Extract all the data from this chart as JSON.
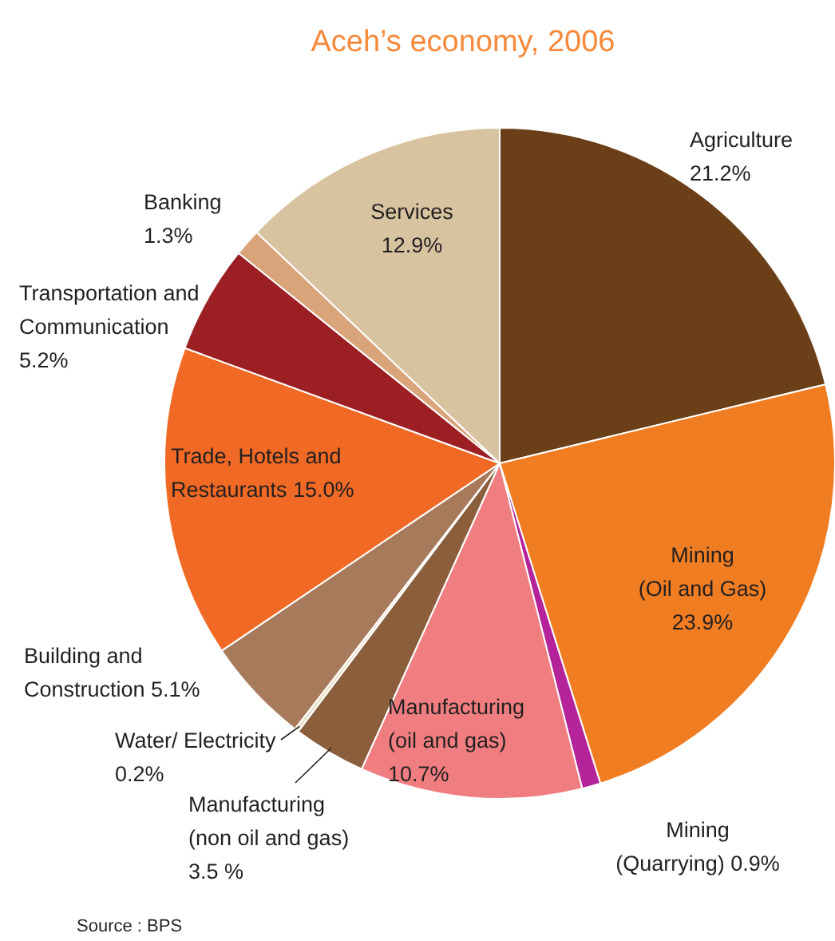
{
  "chart_data": {
    "type": "pie",
    "title": "Aceh’s economy, 2006",
    "categories": [
      "Agriculture",
      "Mining (Oil and Gas)",
      "Mining (Quarrying)",
      "Manufacturing (oil and gas)",
      "Manufacturing (non oil and gas)",
      "Water/ Electricity",
      "Building and Construction",
      "Trade, Hotels and Restaurants",
      "Transportation and Communication",
      "Banking",
      "Services"
    ],
    "values": [
      21.2,
      23.9,
      0.9,
      10.7,
      3.5,
      0.2,
      5.1,
      15.0,
      5.2,
      1.3,
      12.9
    ],
    "value_labels": [
      "21.2%",
      "23.9%",
      "0.9%",
      "10.7%",
      "3.5 %",
      "0.2%",
      "5.1%",
      "15.0%",
      "5.2%",
      "1.3%",
      "12.9%"
    ],
    "colors": [
      "#6b3f17",
      "#f07d22",
      "#b5239a",
      "#f07e80",
      "#8b5e3c",
      "#eadfc4",
      "#a87a5c",
      "#f06a25",
      "#9c1f23",
      "#d9a47a",
      "#d8c3a0"
    ],
    "annotations": [
      "Source : BPS"
    ]
  }
}
